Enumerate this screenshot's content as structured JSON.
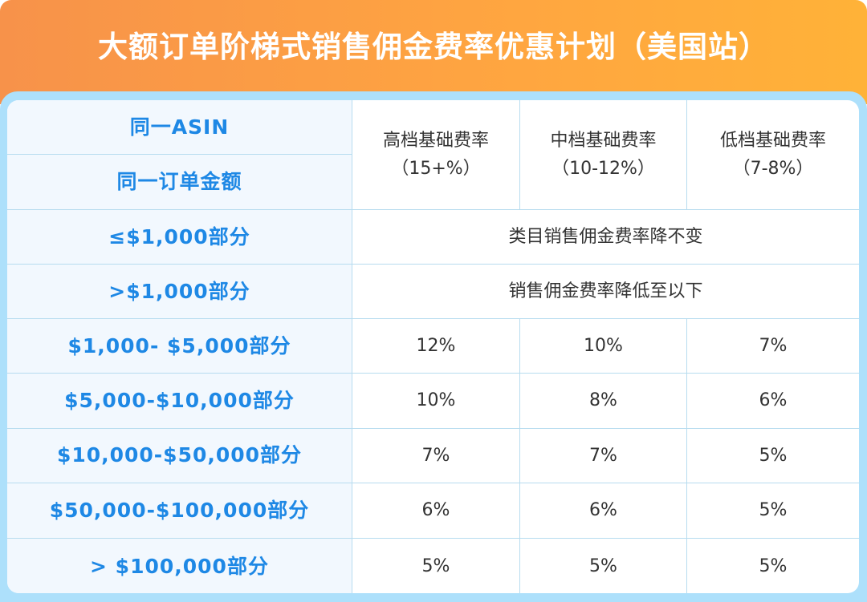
{
  "title": "大额订单阶梯式销售佣金费率优惠计划（美国站）",
  "header": {
    "left_top": "同一ASIN",
    "left_bottom": "同一订单金额",
    "columns": [
      {
        "name": "高档基础费率",
        "range": "（15+%）"
      },
      {
        "name": "中档基础费率",
        "range": "（10-12%）"
      },
      {
        "name": "低档基础费率",
        "range": "（7-8%）"
      }
    ]
  },
  "span_rows": [
    {
      "label": "≤$1,000部分",
      "text": "类目销售佣金费率降不变"
    },
    {
      "label": ">$1,000部分",
      "text": "销售佣金费率降低至以下"
    }
  ],
  "rows": [
    {
      "label": "$1,000- $5,000部分",
      "values": [
        "12%",
        "10%",
        "7%"
      ]
    },
    {
      "label": "$5,000-$10,000部分",
      "values": [
        "10%",
        "8%",
        "6%"
      ]
    },
    {
      "label": "$10,000-$50,000部分",
      "values": [
        "7%",
        "7%",
        "5%"
      ]
    },
    {
      "label": "$50,000-$100,000部分",
      "values": [
        "6%",
        "6%",
        "5%"
      ]
    },
    {
      "label": "> $100,000部分",
      "values": [
        "5%",
        "5%",
        "5%"
      ]
    }
  ],
  "colors": {
    "banner": "#f7924a",
    "frame": "#ade0fb",
    "label_text": "#1e88e5"
  }
}
